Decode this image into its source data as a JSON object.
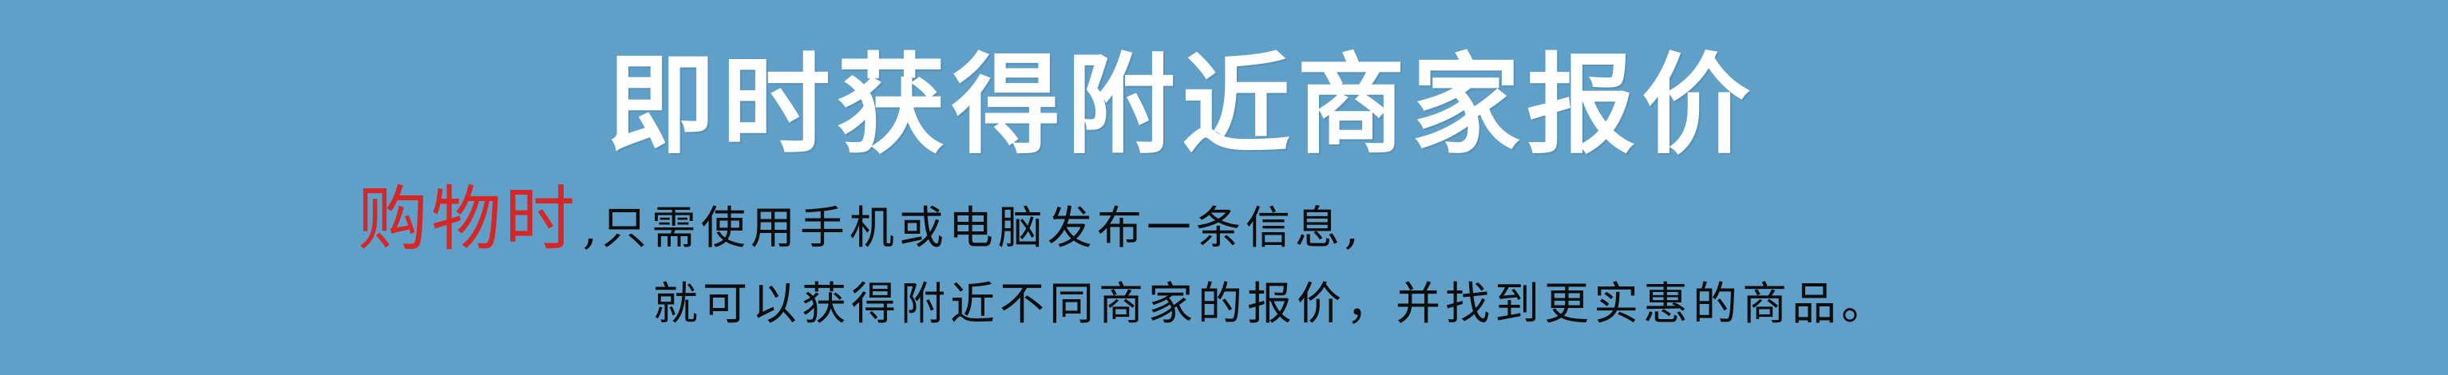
{
  "banner": {
    "headline": "即时获得附近商家报价",
    "line1_accent": "购物时",
    "line1_rest": ",只需使用手机或电脑发布一条信息,",
    "line2": "就可以获得附近不同商家的报价，并找到更实惠的商品。"
  },
  "colors": {
    "background": "#5f9fc8",
    "headline": "#ffffff",
    "accent": "#d62626",
    "body_text": "#0d0d0d"
  }
}
